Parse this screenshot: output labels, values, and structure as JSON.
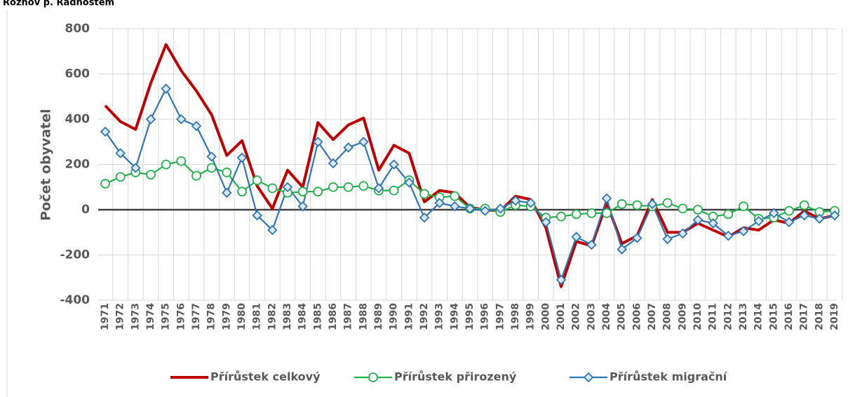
{
  "chart_data": {
    "type": "line",
    "title": "Rožnov p. Radhoštěm",
    "y_label": "Počet obyvatel",
    "categories": [
      "1971",
      "1972",
      "1973",
      "1974",
      "1975",
      "1976",
      "1977",
      "1978",
      "1979",
      "1980",
      "1981",
      "1982",
      "1983",
      "1984",
      "1985",
      "1986",
      "1987",
      "1988",
      "1989",
      "1990",
      "1991",
      "1992",
      "1993",
      "1994",
      "1995",
      "1996",
      "1997",
      "1998",
      "1999",
      "2000",
      "2001",
      "2002",
      "2003",
      "2004",
      "2005",
      "2006",
      "2007",
      "2008",
      "2009",
      "2010",
      "2011",
      "2012",
      "2013",
      "2014",
      "2015",
      "2016",
      "2017",
      "2018",
      "2019"
    ],
    "series": [
      {
        "name": "Přírůstek celkový",
        "color": "#c00000",
        "marker": "none",
        "values": [
          460,
          390,
          355,
          560,
          730,
          615,
          525,
          420,
          240,
          305,
          105,
          5,
          175,
          100,
          385,
          310,
          375,
          405,
          175,
          285,
          250,
          35,
          85,
          75,
          10,
          0,
          -5,
          60,
          45,
          -80,
          -340,
          -140,
          -160,
          30,
          -150,
          -115,
          45,
          -100,
          -100,
          -60,
          -90,
          -120,
          -80,
          -90,
          -45,
          -60,
          -5,
          -40,
          -25
        ]
      },
      {
        "name": "Přírůstek přirozený",
        "color": "#22b14c",
        "marker": "circle",
        "values": [
          115,
          145,
          165,
          155,
          200,
          215,
          150,
          185,
          165,
          80,
          130,
          95,
          75,
          80,
          80,
          100,
          100,
          105,
          85,
          85,
          130,
          70,
          55,
          60,
          5,
          5,
          -10,
          20,
          15,
          -35,
          -30,
          -20,
          -15,
          -15,
          25,
          20,
          15,
          30,
          5,
          0,
          -30,
          -20,
          15,
          -40,
          -35,
          -5,
          20,
          -10,
          -5
        ]
      },
      {
        "name": "Přírůstek migrační",
        "color": "#2e75b6",
        "marker": "diamond",
        "values": [
          345,
          250,
          185,
          400,
          535,
          400,
          370,
          235,
          75,
          230,
          -25,
          -90,
          100,
          15,
          300,
          205,
          275,
          300,
          95,
          200,
          120,
          -35,
          30,
          15,
          5,
          -5,
          5,
          40,
          30,
          -55,
          -310,
          -120,
          -155,
          50,
          -175,
          -125,
          25,
          -130,
          -105,
          -45,
          -60,
          -115,
          -95,
          -50,
          -15,
          -55,
          -25,
          -40,
          -25
        ]
      }
    ],
    "ylim": [
      -400,
      800
    ],
    "yticks": [
      -400,
      -200,
      0,
      200,
      400,
      600,
      800
    ],
    "grid": true,
    "legend": "bottom"
  }
}
